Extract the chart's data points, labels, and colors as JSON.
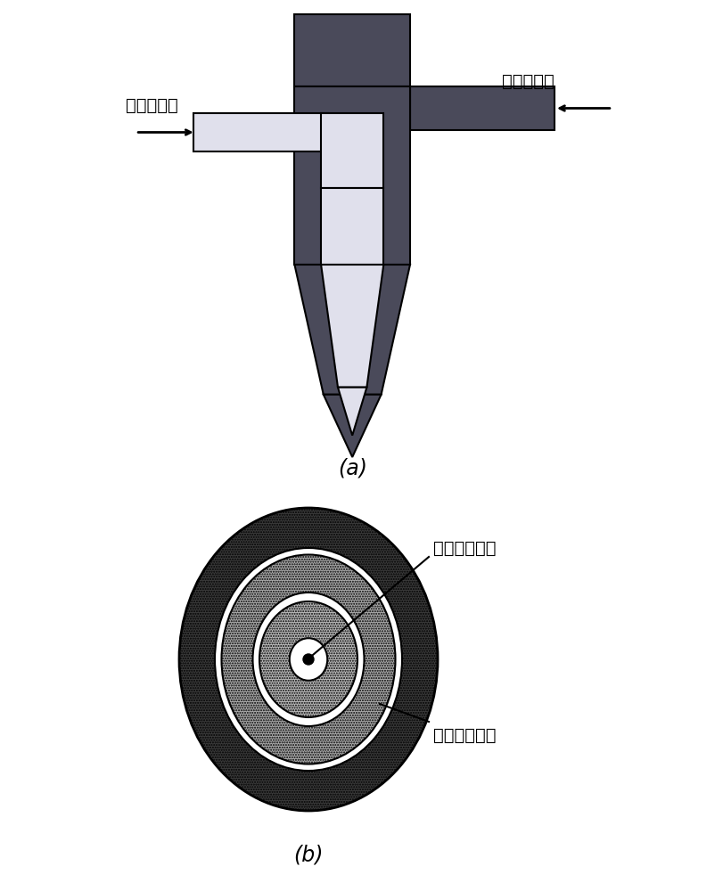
{
  "fig_width": 8.12,
  "fig_height": 10.0,
  "dpi": 100,
  "bg_color": "#ffffff",
  "label_a": "(a)",
  "label_b": "(b)",
  "dark_color": "#4a4a5a",
  "light_color": "#e0e0ec",
  "shell_inlet_label": "壳层进料口",
  "core_inlet_label": "核层进料口",
  "core_outlet_label": "核层溶液出口",
  "shell_outlet_label": "壳层溶液出口",
  "font_size": 14,
  "label_font_size": 17
}
